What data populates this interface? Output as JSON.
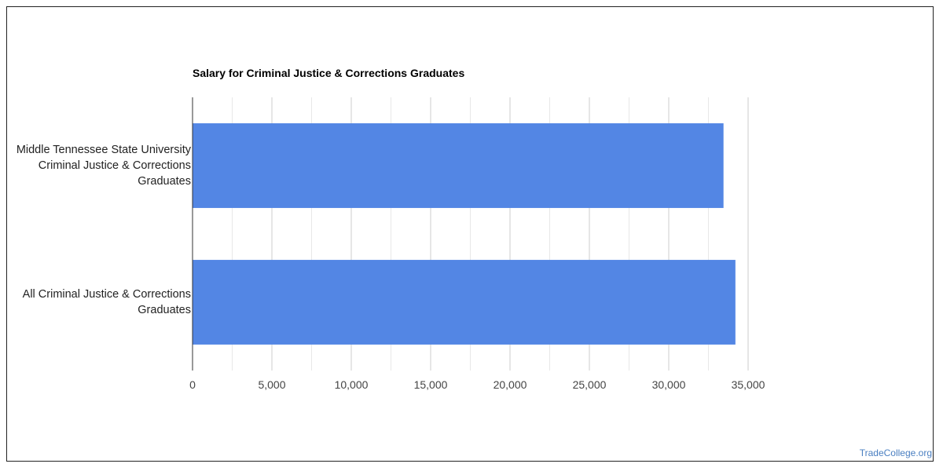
{
  "chart_data": {
    "type": "bar",
    "orientation": "horizontal",
    "title": "Salary for Criminal Justice & Corrections Graduates",
    "categories": [
      "Middle Tennessee State University Criminal Justice & Corrections Graduates",
      "All Criminal Justice & Corrections Graduates"
    ],
    "category_lines": [
      [
        "Middle Tennessee State University",
        "Criminal Justice & Corrections",
        "Graduates"
      ],
      [
        "All Criminal Justice & Corrections",
        "Graduates"
      ]
    ],
    "values": [
      33450,
      34200
    ],
    "xlim": [
      0,
      35000
    ],
    "x_ticks": [
      0,
      5000,
      10000,
      15000,
      20000,
      25000,
      30000,
      35000
    ],
    "x_tick_labels": [
      "0",
      "5,000",
      "10,000",
      "15,000",
      "20,000",
      "25,000",
      "30,000",
      "35,000"
    ],
    "bar_color": "#5386e4",
    "grid": true,
    "xlabel": "",
    "ylabel": ""
  },
  "watermark": "TradeCollege.org"
}
